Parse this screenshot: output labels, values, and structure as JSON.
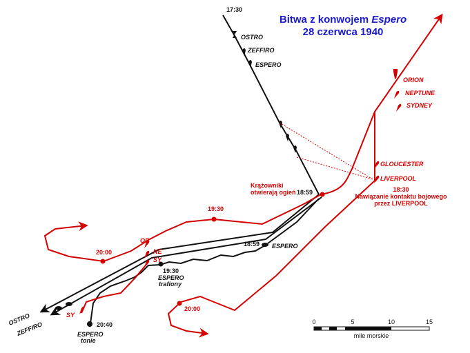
{
  "title": {
    "line1_prefix": "Bitwa z konwojem ",
    "line1_italic": "Espero",
    "line2": "28 czerwca 1940"
  },
  "colors": {
    "italian": "#111111",
    "british": "#d40000",
    "title": "#1a1acc"
  },
  "italian_ships": {
    "ostro": "OSTRO",
    "zeffiro": "ZEFFIRO",
    "espero": "ESPERO"
  },
  "british_ships": {
    "orion": "ORION",
    "neptune": "NEPTUNE",
    "sydney": "SYDNEY",
    "gloucester": "GLOUCESTER",
    "liverpool": "LIVERPOOL",
    "or": "OR",
    "ne": "NE",
    "sy": "SY"
  },
  "times": {
    "t1730": "17:30",
    "t1859_cruisers": "18:59",
    "t1859_espero": "18:59",
    "t1830": "18:30",
    "t1930_red": "19:30",
    "t1930_black": "19:30",
    "t2000_left": "20:00",
    "t2000_right": "20:00",
    "t2040": "20:40"
  },
  "notes": {
    "cruisers_open_fire_1": "Krążowniki",
    "cruisers_open_fire_2": "otwierają ogień",
    "contact_1": "Nawiązanie kontaktu bojowego",
    "contact_2": "przez LIVERPOOL",
    "espero_hit_1": "ESPERO",
    "espero_hit_2": "trafiony",
    "espero_sinks_1": "ESPERO",
    "espero_sinks_2": "tonie"
  },
  "scale": {
    "ticks": [
      "0",
      "5",
      "10",
      "15"
    ],
    "unit": "mile morskie"
  }
}
